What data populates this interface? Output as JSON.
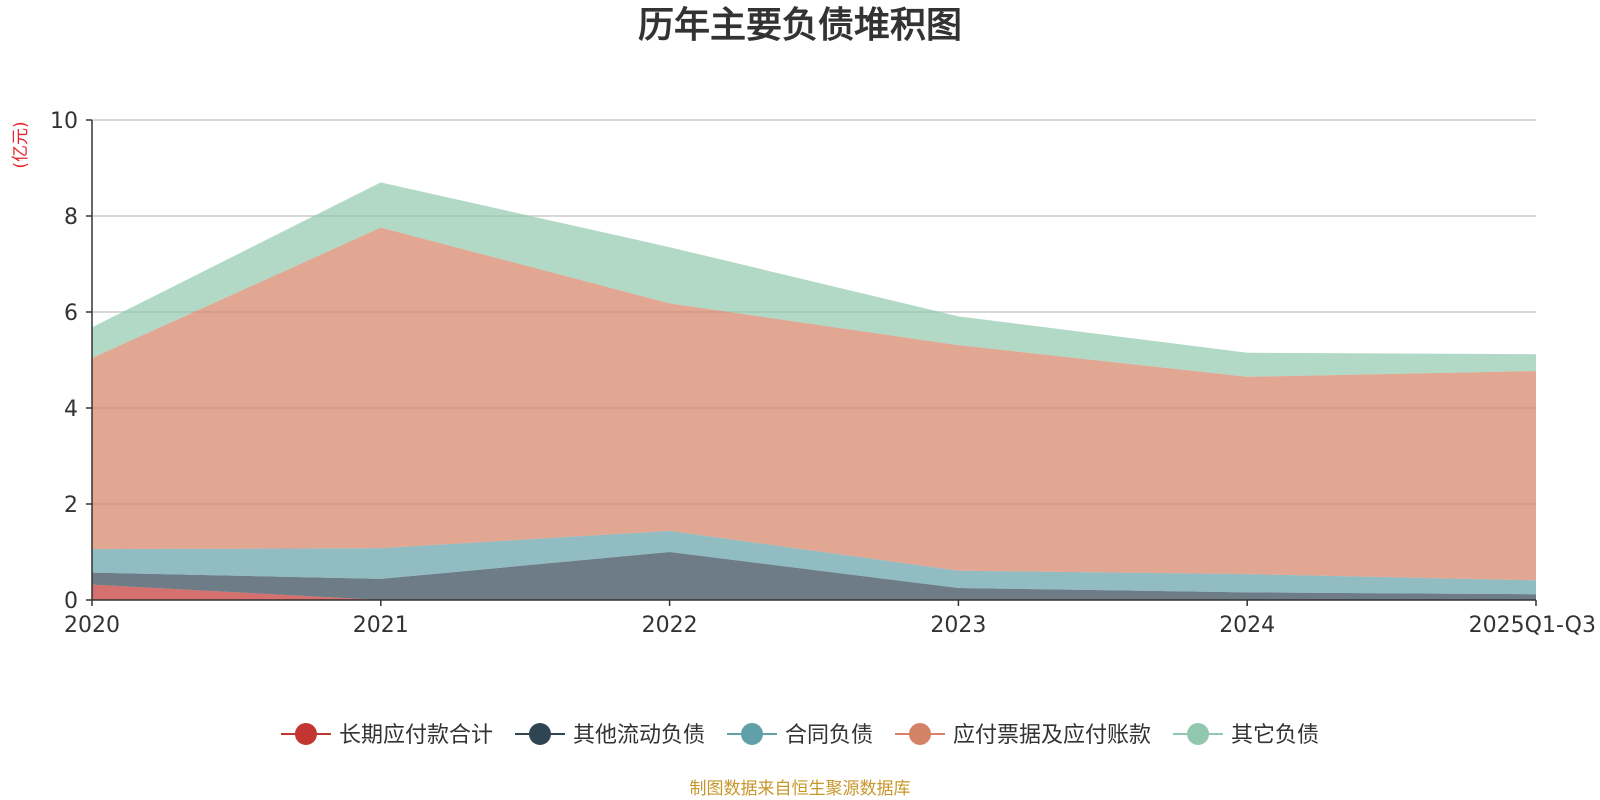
{
  "chart_data": {
    "type": "area",
    "stacked": true,
    "title": "历年主要负债堆积图",
    "unit_label": "(亿元)",
    "source": "制图数据来自恒生聚源数据库",
    "categories": [
      "2020",
      "2021",
      "2022",
      "2023",
      "2024",
      "2025Q1-Q3"
    ],
    "ylim": [
      0,
      10
    ],
    "yticks": [
      0,
      2,
      4,
      6,
      8,
      10
    ],
    "grid": true,
    "legend_position": "bottom",
    "series": [
      {
        "name": "长期应付款合计",
        "color": "#c23531",
        "values": [
          0.32,
          0.0,
          0.0,
          0.0,
          0.0,
          0.0
        ]
      },
      {
        "name": "其他流动负债",
        "color": "#2f4554",
        "values": [
          0.25,
          0.44,
          1.0,
          0.25,
          0.16,
          0.12
        ]
      },
      {
        "name": "合同负债",
        "color": "#61a0a8",
        "values": [
          0.49,
          0.64,
          0.44,
          0.36,
          0.38,
          0.29
        ]
      },
      {
        "name": "应付票据及应付账款",
        "color": "#d48265",
        "values": [
          3.98,
          6.68,
          4.74,
          4.7,
          4.11,
          4.36
        ]
      },
      {
        "name": "其它负债",
        "color": "#91c7ae",
        "values": [
          0.64,
          0.94,
          1.17,
          0.6,
          0.5,
          0.35
        ]
      }
    ]
  }
}
